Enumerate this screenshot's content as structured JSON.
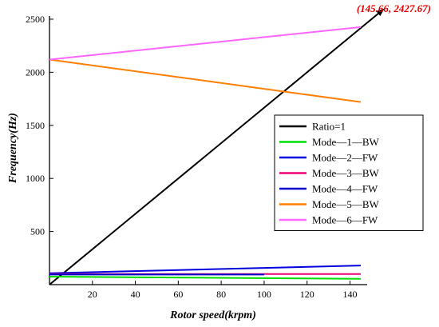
{
  "chart_data": {
    "type": "line",
    "xlabel": "Rotor speed(krpm)",
    "ylabel": "Frequency(Hz)",
    "xlim": [
      0,
      148
    ],
    "ylim": [
      0,
      2530
    ],
    "xticks": [
      20,
      40,
      60,
      80,
      100,
      120,
      140
    ],
    "yticks": [
      500,
      1000,
      1500,
      2000,
      2500
    ],
    "legend_position": "right",
    "annotation": {
      "text": "(145.66, 2427.67)",
      "x": 145.66,
      "y": 2427.67,
      "color": "#e60000"
    },
    "series": [
      {
        "name": "Ratio=1",
        "color": "#000000",
        "x": [
          0,
          145.66
        ],
        "y": [
          0,
          2427.67
        ]
      },
      {
        "name": "Mode—1—BW",
        "color": "#00dd00",
        "x": [
          0,
          145
        ],
        "y": [
          75,
          55
        ]
      },
      {
        "name": "Mode—2—FW",
        "color": "#0000dd",
        "x": [
          0,
          145
        ],
        "y": [
          108,
          180
        ]
      },
      {
        "name": "Mode—3—BW",
        "color": "#ee0077",
        "x": [
          0,
          145
        ],
        "y": [
          100,
          100
        ]
      },
      {
        "name": "Mode—4—FW",
        "color": "#0000cc",
        "x": [
          0,
          100
        ],
        "y": [
          95,
          95
        ]
      },
      {
        "name": "Mode—5—BW",
        "color": "#ff7f00",
        "x": [
          0,
          145
        ],
        "y": [
          2120,
          1720
        ]
      },
      {
        "name": "Mode—6—FW",
        "color": "#ff66ff",
        "x": [
          0,
          145
        ],
        "y": [
          2120,
          2425
        ]
      }
    ]
  }
}
